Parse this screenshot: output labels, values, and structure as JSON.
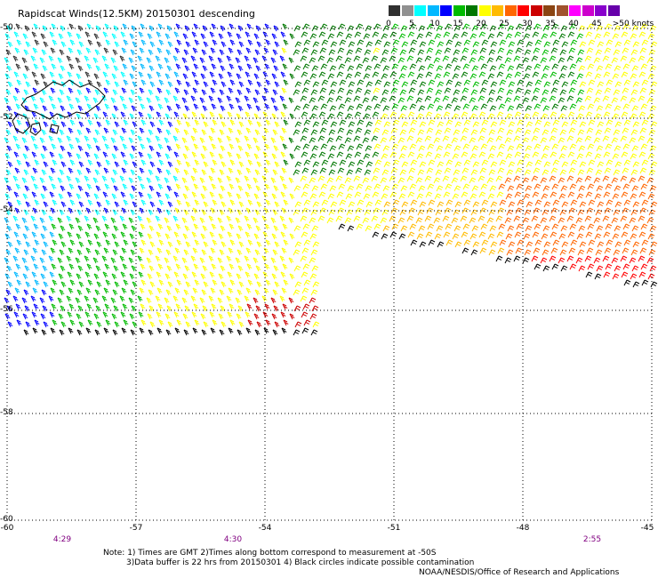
{
  "title": "Rapidscat Winds(12.5KM) 20150301 descending",
  "legend": {
    "labels": [
      "0",
      "5",
      "10",
      "15",
      "20",
      "25",
      "30",
      "35",
      "40",
      "45",
      ">50 knots"
    ],
    "colors": [
      "#303030",
      "#909090",
      "#00ffff",
      "#00b8ff",
      "#0000ff",
      "#00bb00",
      "#007700",
      "#ffff00",
      "#ffbb00",
      "#ff6600",
      "#ff0000",
      "#cc0000",
      "#8b4513",
      "#a0522d",
      "#ff00ff",
      "#cc00cc",
      "#8800cc",
      "#6600aa"
    ]
  },
  "axes": {
    "lat_labels": [
      "-50",
      "-52",
      "-54",
      "-56",
      "-58",
      "-60"
    ],
    "lon_labels": [
      "-60",
      "-57",
      "-54",
      "-51",
      "-48",
      "-45"
    ]
  },
  "pass_times": [
    "4:29",
    "4:30",
    "2:55"
  ],
  "notes": {
    "line1": "Note: 1) Times are GMT 2)Times along bottom correspond to measurement at -50S",
    "line2": "3)Data buffer is 22 hrs from 20150301 4) Black circles indicate possible contamination",
    "line3": "NOAA/NESDIS/Office of Research and Applications"
  }
}
